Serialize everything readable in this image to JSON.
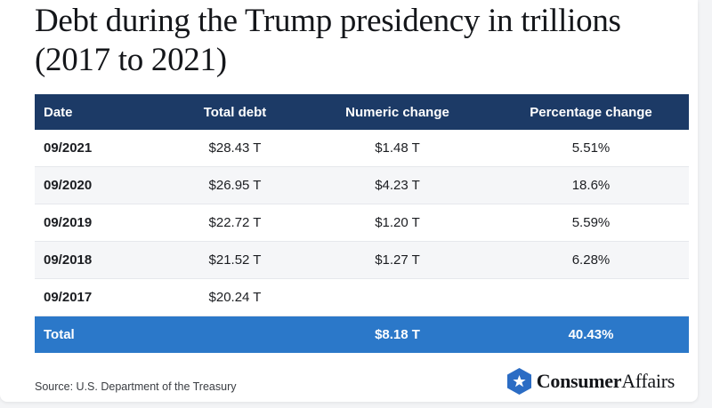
{
  "title": "Debt during the Trump presidency in trillions (2017 to 2021)",
  "table": {
    "headers": [
      "Date",
      "Total debt",
      "Numeric change",
      "Percentage change"
    ],
    "rows": [
      [
        "09/2021",
        "$28.43 T",
        "$1.48 T",
        "5.51%"
      ],
      [
        "09/2020",
        "$26.95 T",
        "$4.23 T",
        "18.6%"
      ],
      [
        "09/2019",
        "$22.72 T",
        "$1.20 T",
        "5.59%"
      ],
      [
        "09/2018",
        "$21.52 T",
        "$1.27 T",
        "6.28%"
      ],
      [
        "09/2017",
        "$20.24 T",
        "",
        ""
      ]
    ],
    "total": [
      "Total",
      "",
      "$8.18 T",
      "40.43%"
    ]
  },
  "source": "Source: U.S. Department of the Treasury",
  "brand": {
    "bold": "Consumer",
    "regular": "Affairs",
    "icon": "hexagon-star-icon"
  },
  "colors": {
    "header_bg": "#1c3a66",
    "total_bg": "#2b78c9",
    "brand_blue": "#2b6cc4"
  }
}
